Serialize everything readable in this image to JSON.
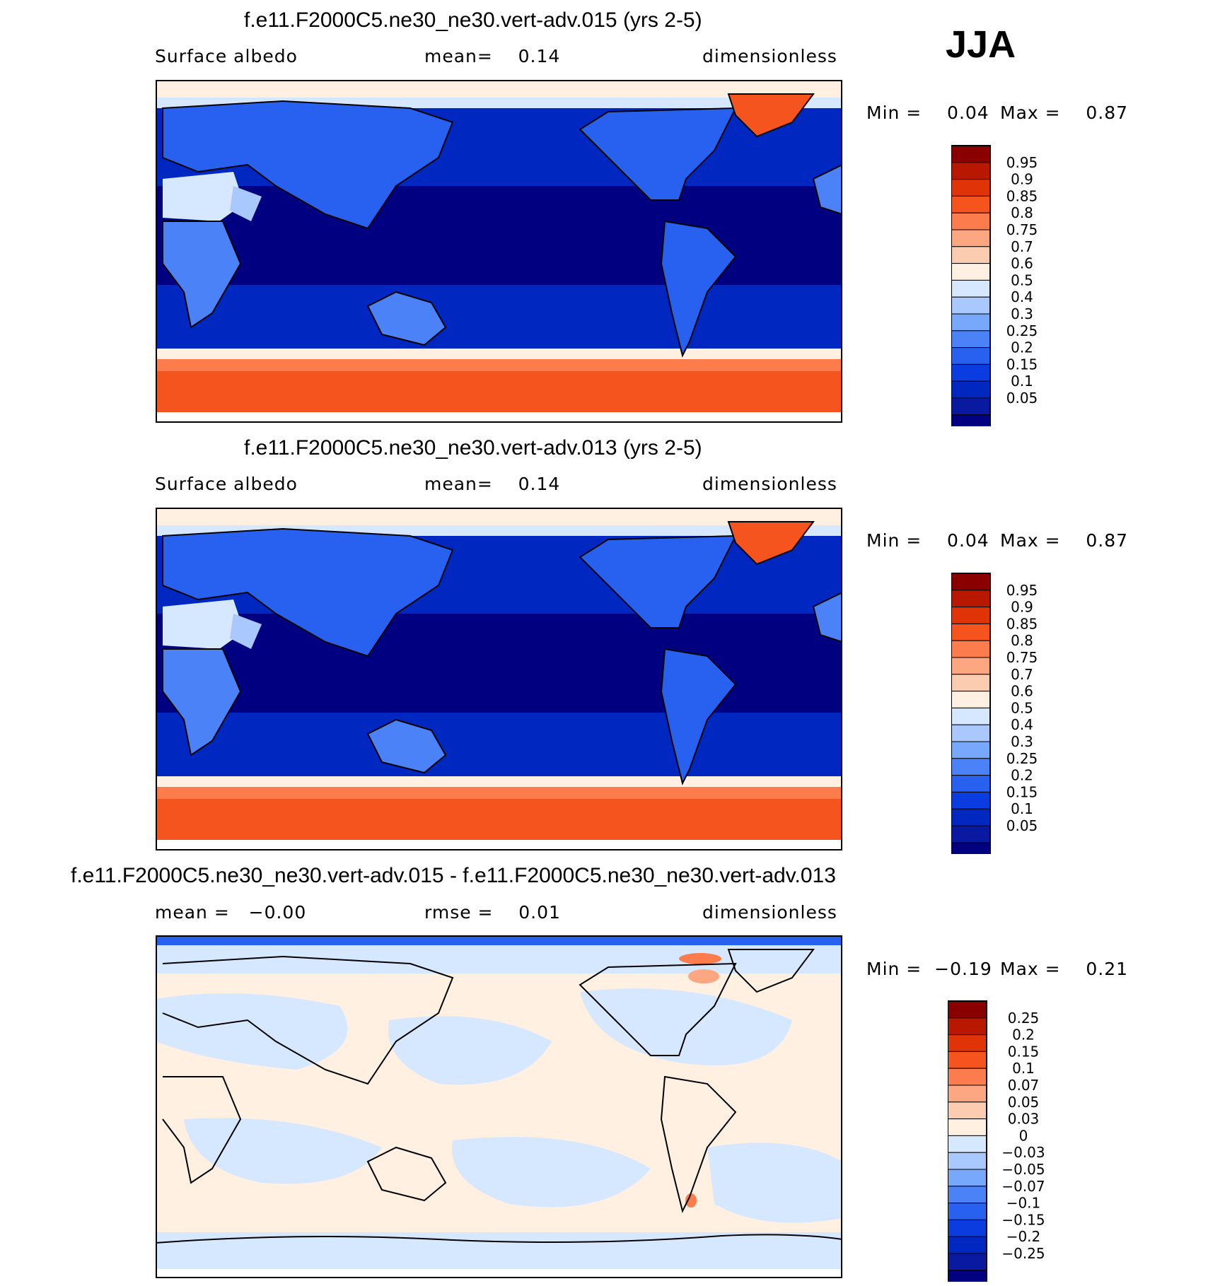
{
  "season": "JJA",
  "colors": {
    "abs": [
      "#000080",
      "#0a1aa0",
      "#0028c0",
      "#0a3ce0",
      "#2860f0",
      "#4c82f8",
      "#78a8fc",
      "#a8c8fe",
      "#d6e8ff",
      "#fff0e2",
      "#fcccb0",
      "#fca682",
      "#fc7c4e",
      "#f6541e",
      "#e03408",
      "#b81800",
      "#8a0000"
    ],
    "diff": [
      "#000080",
      "#0a1aa0",
      "#0028c0",
      "#0a3ce0",
      "#2860f0",
      "#4c82f8",
      "#78a8fc",
      "#a8c8fe",
      "#d6e8ff",
      "#fff0e2",
      "#fcccb0",
      "#fca682",
      "#fc7c4e",
      "#f6541e",
      "#e03408",
      "#b81800",
      "#8a0000"
    ]
  },
  "chart_data": [
    {
      "type": "heatmap",
      "title": "f.e11.F2000C5.ne30_ne30.vert-adv.015 (yrs 2-5)",
      "left_label": "Surface albedo",
      "center_label": "mean=    0.14",
      "right_label": "dimensionless",
      "min_text": "Min =    0.04",
      "max_text": "Max =    0.87",
      "min": 0.04,
      "max": 0.87,
      "mean": 0.14,
      "colorbar_levels": [
        "0.95",
        "0.9",
        "0.85",
        "0.8",
        "0.75",
        "0.7",
        "0.6",
        "0.5",
        "0.4",
        "0.3",
        "0.25",
        "0.2",
        "0.15",
        "0.1",
        "0.05"
      ]
    },
    {
      "type": "heatmap",
      "title": "f.e11.F2000C5.ne30_ne30.vert-adv.013 (yrs 2-5)",
      "left_label": "Surface albedo",
      "center_label": "mean=    0.14",
      "right_label": "dimensionless",
      "min_text": "Min =    0.04",
      "max_text": "Max =    0.87",
      "min": 0.04,
      "max": 0.87,
      "mean": 0.14,
      "colorbar_levels": [
        "0.95",
        "0.9",
        "0.85",
        "0.8",
        "0.75",
        "0.7",
        "0.6",
        "0.5",
        "0.4",
        "0.3",
        "0.25",
        "0.2",
        "0.15",
        "0.1",
        "0.05"
      ]
    },
    {
      "type": "heatmap",
      "title": "f.e11.F2000C5.ne30_ne30.vert-adv.015 - f.e11.F2000C5.ne30_ne30.vert-adv.013",
      "left_label": "mean =   −0.00",
      "center_label": "rmse =    0.01",
      "right_label": "dimensionless",
      "min_text": "Min =  −0.19",
      "max_text": "Max =    0.21",
      "min": -0.19,
      "max": 0.21,
      "mean": -0.0,
      "rmse": 0.01,
      "colorbar_levels": [
        "0.25",
        "0.2",
        "0.15",
        "0.1",
        "0.07",
        "0.05",
        "0.03",
        "0",
        "−0.03",
        "−0.05",
        "−0.07",
        "−0.1",
        "−0.15",
        "−0.2",
        "−0.25"
      ]
    }
  ]
}
